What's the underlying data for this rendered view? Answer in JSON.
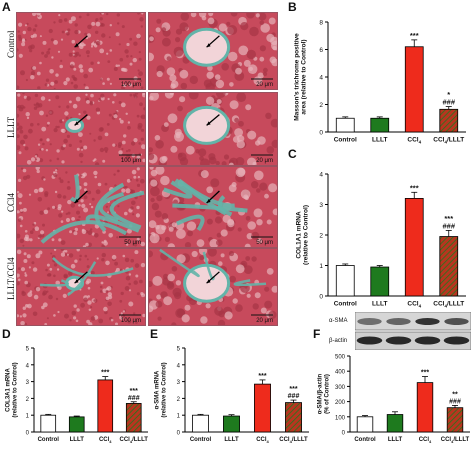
{
  "figure": {
    "panel_letters": [
      "A",
      "B",
      "C",
      "D",
      "E",
      "F"
    ],
    "row_labels": [
      "Control",
      "LLLT",
      "CCl4",
      "LLLT/CCl4"
    ],
    "scale_bars_left": [
      "100 μm",
      "100 μm",
      "50 μm",
      "100 μm"
    ],
    "scale_bars_right": [
      "20 μm",
      "20 μm",
      "50 μm",
      "20 μm"
    ]
  },
  "colors": {
    "control": "#ffffff",
    "lllt": "#1e7a1e",
    "ccl4": "#ee2b1c",
    "combo": "#b8351f",
    "stain_red": "#c74a5c",
    "stain_pink": "#e7b2b9",
    "stain_blue": "#63b4a9"
  },
  "chart_data": [
    {
      "id": "B",
      "type": "bar",
      "categories": [
        "Control",
        "LLLT",
        "CCl4",
        "CCl4/LLLT"
      ],
      "values": [
        1.0,
        1.0,
        6.2,
        1.65
      ],
      "errors": [
        0.1,
        0.1,
        0.5,
        0.2
      ],
      "ylabel": "Masson's trichrome positive area (relative to Control)",
      "ylim": [
        0,
        8
      ],
      "yticks": [
        0,
        2,
        4,
        6,
        8
      ],
      "annotations": [
        [
          "",
          ""
        ],
        [
          "",
          ""
        ],
        [
          "***",
          ""
        ],
        [
          "*",
          "###"
        ]
      ]
    },
    {
      "id": "C",
      "type": "bar",
      "categories": [
        "Control",
        "LLLT",
        "CCl4",
        "CCl4/LLLT"
      ],
      "values": [
        1.0,
        0.95,
        3.2,
        1.95
      ],
      "errors": [
        0.05,
        0.05,
        0.2,
        0.2
      ],
      "ylabel": "COL1A1 mRNA (relative to Control)",
      "ylim": [
        0,
        4
      ],
      "yticks": [
        0,
        1,
        2,
        3,
        4
      ],
      "annotations": [
        [
          "",
          ""
        ],
        [
          "",
          ""
        ],
        [
          "***",
          ""
        ],
        [
          "***",
          "###"
        ]
      ]
    },
    {
      "id": "D",
      "type": "bar",
      "categories": [
        "Control",
        "LLLT",
        "CCl4",
        "CCl4/LLLT"
      ],
      "values": [
        1.0,
        0.9,
        3.1,
        1.7
      ],
      "errors": [
        0.05,
        0.05,
        0.2,
        0.1
      ],
      "ylabel": "COL3A1 mRNA (relative to Control)",
      "ylim": [
        0,
        5
      ],
      "yticks": [
        0,
        1,
        2,
        3,
        4,
        5
      ],
      "annotations": [
        [
          "",
          ""
        ],
        [
          "",
          ""
        ],
        [
          "***",
          ""
        ],
        [
          "***",
          "###"
        ]
      ]
    },
    {
      "id": "E",
      "type": "bar",
      "categories": [
        "Control",
        "LLLT",
        "CCl4",
        "CCl4/LLLT"
      ],
      "values": [
        1.0,
        0.95,
        2.85,
        1.75
      ],
      "errors": [
        0.05,
        0.08,
        0.25,
        0.15
      ],
      "ylabel": "α-SMA mRNA (relative to Control)",
      "ylim": [
        0,
        5
      ],
      "yticks": [
        0,
        1,
        2,
        3,
        4,
        5
      ],
      "annotations": [
        [
          "",
          ""
        ],
        [
          "",
          ""
        ],
        [
          "***",
          ""
        ],
        [
          "***",
          "###"
        ]
      ]
    },
    {
      "id": "F",
      "type": "bar",
      "categories": [
        "Control",
        "LLLT",
        "CCl4",
        "CCl4/LLLT"
      ],
      "values": [
        100,
        115,
        325,
        160
      ],
      "errors": [
        8,
        18,
        40,
        15
      ],
      "ylabel": "α-SMA/β-actin (% of Control)",
      "ylim": [
        0,
        500
      ],
      "yticks": [
        0,
        100,
        200,
        300,
        400,
        500
      ],
      "annotations": [
        [
          "",
          ""
        ],
        [
          "",
          ""
        ],
        [
          "***",
          ""
        ],
        [
          "**",
          "###"
        ]
      ]
    }
  ],
  "western_blot": {
    "labels": [
      "α-SMA",
      "β-actin"
    ],
    "alpha_sma_intensity": [
      0.55,
      0.6,
      0.85,
      0.7
    ],
    "beta_actin_intensity": [
      0.9,
      0.9,
      0.9,
      0.9
    ]
  }
}
